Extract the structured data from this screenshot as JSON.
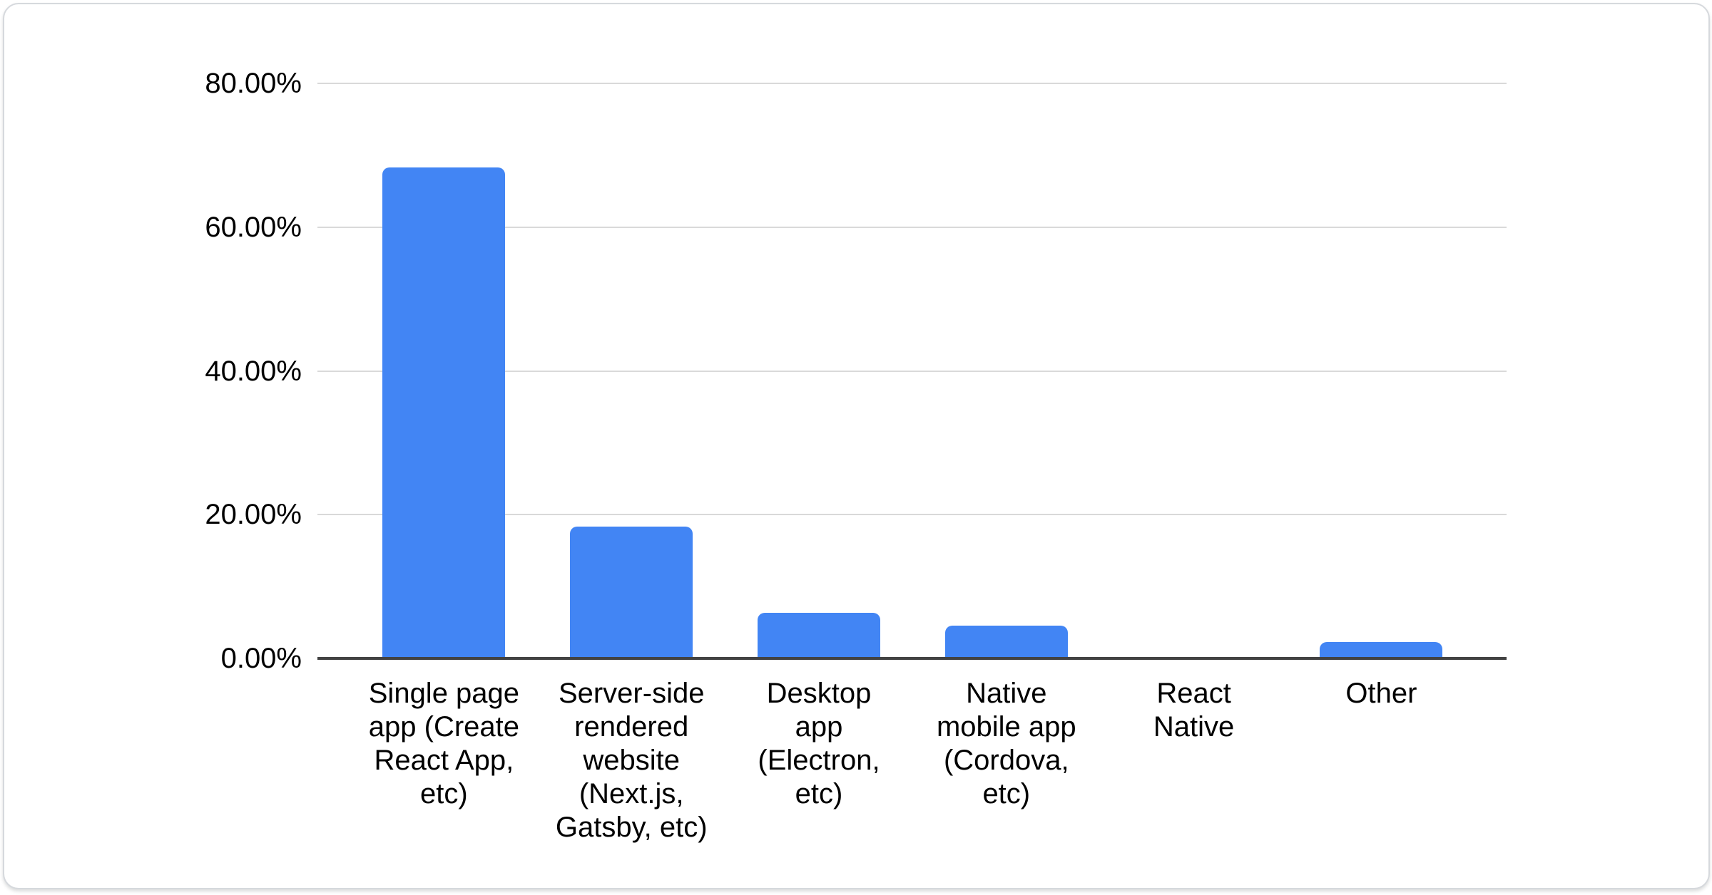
{
  "chart_data": {
    "type": "bar",
    "title": "",
    "xlabel": "",
    "ylabel": "",
    "categories": [
      "Single page app (Create React App, etc)",
      "Server-side rendered website (Next.js, Gatsby, etc)",
      "Desktop app (Electron, etc)",
      "Native mobile app (Cordova, etc)",
      "React Native",
      "Other"
    ],
    "category_lines": [
      [
        "Single page",
        "app (Create",
        "React App,",
        "etc)"
      ],
      [
        "Server-side",
        "rendered",
        "website",
        "(Next.js,",
        "Gatsby, etc)"
      ],
      [
        "Desktop",
        "app",
        "(Electron,",
        "etc)"
      ],
      [
        "Native",
        "mobile app",
        "(Cordova,",
        "etc)"
      ],
      [
        "React",
        "Native"
      ],
      [
        "Other"
      ]
    ],
    "values": [
      68.3,
      18.3,
      6.3,
      4.6,
      0,
      2.3
    ],
    "unit": "%",
    "ylim": [
      0,
      80
    ],
    "yticks": [
      "80.00%",
      "60.00%",
      "40.00%",
      "20.00%",
      "0.00%"
    ],
    "ytick_values": [
      80,
      60,
      40,
      20,
      0
    ],
    "grid": "horizontal",
    "legend": "none",
    "bar_color": "#4285f4",
    "gridline_color": "#d9d9d9",
    "axis_line_color": "#424242",
    "text_color": "#000000"
  }
}
